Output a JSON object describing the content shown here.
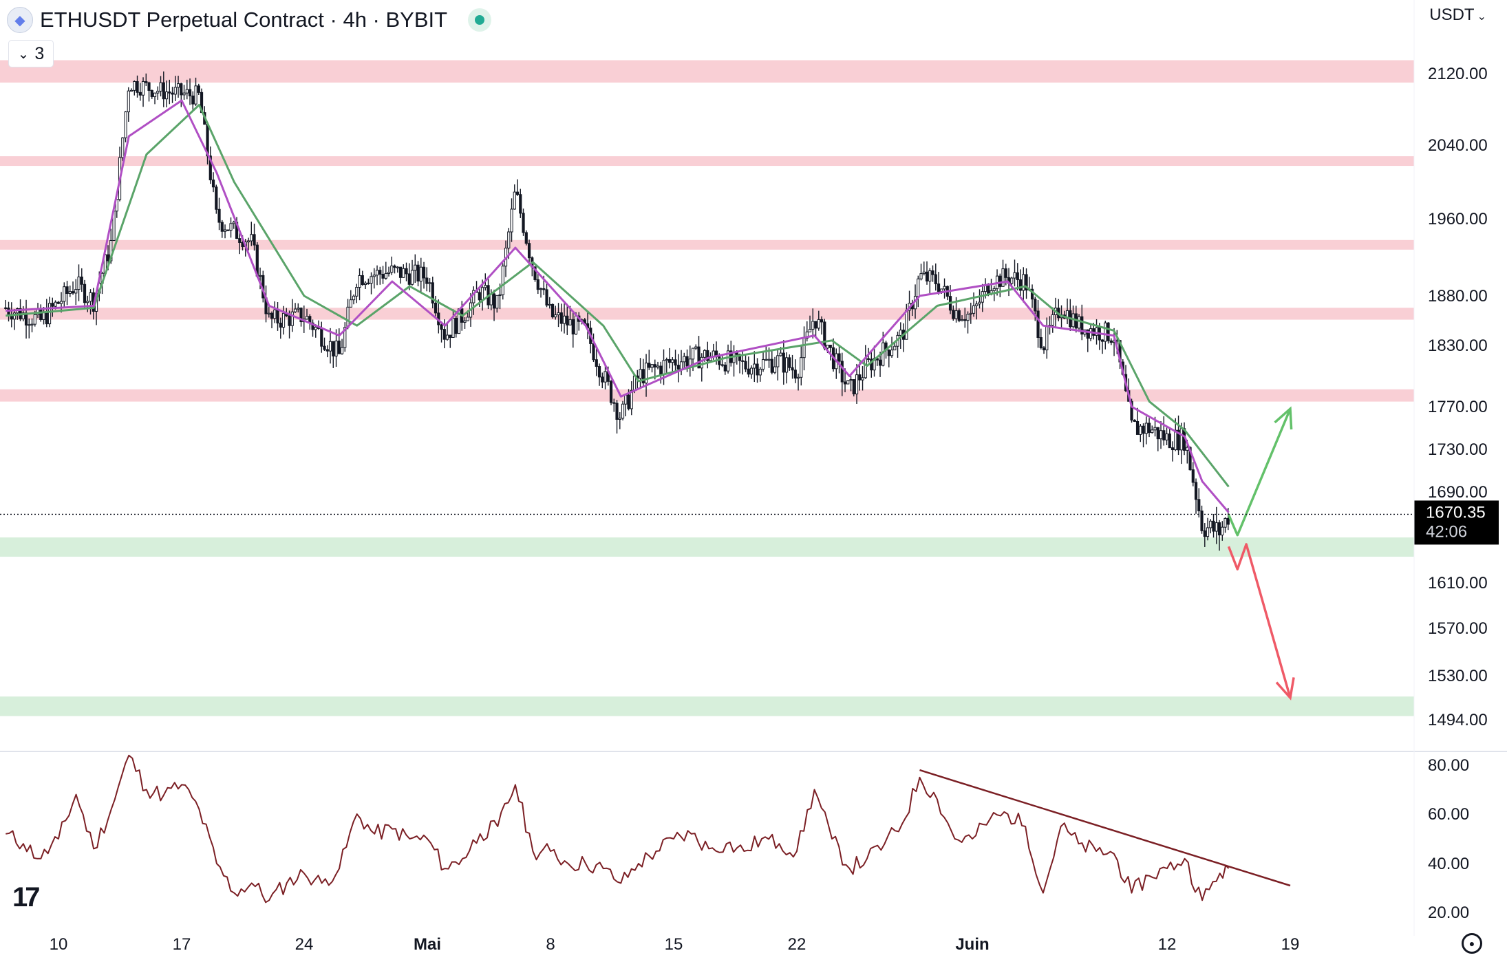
{
  "header": {
    "title": "ETHUSDT Perpetual Contract · 4h · BYBIT",
    "indicator_count": "3",
    "currency": "USDT"
  },
  "icons": {
    "symbol": "ethereum-logo-icon",
    "live": "market-open-dot-icon",
    "collapse": "chevron-down-icon",
    "currency_menu": "chevron-down-icon",
    "brand": "tradingview-logo-icon",
    "settings": "gear-icon"
  },
  "colors": {
    "resistance_zone": "#f9cfd5",
    "support_zone": "#d7efdb",
    "ema_fast": "#b04fc4",
    "ema_slow": "#5aa469",
    "rsi_line": "#7b1f24",
    "bull_arrow": "#63c16a",
    "bear_arrow": "#ef5a67",
    "candle": "#131722"
  },
  "chart_data": [
    {
      "type": "candlestick",
      "title": "ETHUSDT Perpetual Contract · 4h · BYBIT",
      "y_axis": {
        "ticks": [
          2120,
          2040,
          1960,
          1880,
          1830,
          1770,
          1730,
          1690,
          1610,
          1570,
          1530,
          1494
        ],
        "tick_labels": [
          "2120.00",
          "2040.00",
          "1960.00",
          "1880.00",
          "1830.00",
          "1770.00",
          "1730.00",
          "1690.00",
          "1610.00",
          "1570.00",
          "1530.00",
          "1494.00"
        ]
      },
      "x_axis": {
        "tick_labels": [
          "10",
          "17",
          "24",
          "Mai",
          "8",
          "15",
          "22",
          "Juin",
          "12",
          "19"
        ],
        "tick_dates": [
          "2023-04-10",
          "2023-04-17",
          "2023-04-24",
          "2023-05-01",
          "2023-05-08",
          "2023-05-15",
          "2023-05-22",
          "2023-06-01",
          "2023-06-12",
          "2023-06-19"
        ]
      },
      "current_price": {
        "value": 1670.35,
        "label": "1670.35",
        "countdown": "42:06"
      },
      "price_path": [
        {
          "date": "2023-04-07",
          "price": 1868
        },
        {
          "date": "2023-04-09",
          "price": 1855
        },
        {
          "date": "2023-04-11",
          "price": 1892
        },
        {
          "date": "2023-04-12",
          "price": 1875
        },
        {
          "date": "2023-04-13",
          "price": 1935
        },
        {
          "date": "2023-04-14",
          "price": 2110
        },
        {
          "date": "2023-04-16",
          "price": 2100
        },
        {
          "date": "2023-04-18",
          "price": 2095
        },
        {
          "date": "2023-04-19",
          "price": 1960
        },
        {
          "date": "2023-04-21",
          "price": 1935
        },
        {
          "date": "2023-04-22",
          "price": 1855
        },
        {
          "date": "2023-04-24",
          "price": 1860
        },
        {
          "date": "2023-04-26",
          "price": 1820
        },
        {
          "date": "2023-04-27",
          "price": 1900
        },
        {
          "date": "2023-04-29",
          "price": 1905
        },
        {
          "date": "2023-05-01",
          "price": 1900
        },
        {
          "date": "2023-05-02",
          "price": 1840
        },
        {
          "date": "2023-05-03",
          "price": 1860
        },
        {
          "date": "2023-05-04",
          "price": 1885
        },
        {
          "date": "2023-05-05",
          "price": 1870
        },
        {
          "date": "2023-05-06",
          "price": 1990
        },
        {
          "date": "2023-05-07",
          "price": 1910
        },
        {
          "date": "2023-05-08",
          "price": 1860
        },
        {
          "date": "2023-05-10",
          "price": 1845
        },
        {
          "date": "2023-05-11",
          "price": 1800
        },
        {
          "date": "2023-05-12",
          "price": 1760
        },
        {
          "date": "2023-05-13",
          "price": 1800
        },
        {
          "date": "2023-05-15",
          "price": 1815
        },
        {
          "date": "2023-05-17",
          "price": 1820
        },
        {
          "date": "2023-05-19",
          "price": 1810
        },
        {
          "date": "2023-05-21",
          "price": 1815
        },
        {
          "date": "2023-05-22",
          "price": 1805
        },
        {
          "date": "2023-05-23",
          "price": 1860
        },
        {
          "date": "2023-05-24",
          "price": 1820
        },
        {
          "date": "2023-05-25",
          "price": 1785
        },
        {
          "date": "2023-05-26",
          "price": 1810
        },
        {
          "date": "2023-05-27",
          "price": 1825
        },
        {
          "date": "2023-05-28",
          "price": 1840
        },
        {
          "date": "2023-05-29",
          "price": 1900
        },
        {
          "date": "2023-05-30",
          "price": 1895
        },
        {
          "date": "2023-05-31",
          "price": 1865
        },
        {
          "date": "2023-06-01",
          "price": 1860
        },
        {
          "date": "2023-06-02",
          "price": 1895
        },
        {
          "date": "2023-06-03",
          "price": 1900
        },
        {
          "date": "2023-06-04",
          "price": 1895
        },
        {
          "date": "2023-06-05",
          "price": 1830
        },
        {
          "date": "2023-06-06",
          "price": 1870
        },
        {
          "date": "2023-06-07",
          "price": 1850
        },
        {
          "date": "2023-06-08",
          "price": 1845
        },
        {
          "date": "2023-06-09",
          "price": 1840
        },
        {
          "date": "2023-06-10",
          "price": 1750
        },
        {
          "date": "2023-06-11",
          "price": 1750
        },
        {
          "date": "2023-06-12",
          "price": 1740
        },
        {
          "date": "2023-06-13",
          "price": 1740
        },
        {
          "date": "2023-06-14",
          "price": 1660
        },
        {
          "date": "2023-06-15",
          "price": 1655
        },
        {
          "date": "2023-06-15T12:00",
          "price": 1670
        }
      ],
      "ema_fast": [
        {
          "date": "2023-04-07",
          "price": 1865
        },
        {
          "date": "2023-04-12",
          "price": 1870
        },
        {
          "date": "2023-04-14",
          "price": 2050
        },
        {
          "date": "2023-04-17",
          "price": 2090
        },
        {
          "date": "2023-04-19",
          "price": 2010
        },
        {
          "date": "2023-04-22",
          "price": 1870
        },
        {
          "date": "2023-04-26",
          "price": 1840
        },
        {
          "date": "2023-04-29",
          "price": 1895
        },
        {
          "date": "2023-05-02",
          "price": 1850
        },
        {
          "date": "2023-05-06",
          "price": 1930
        },
        {
          "date": "2023-05-10",
          "price": 1850
        },
        {
          "date": "2023-05-12",
          "price": 1780
        },
        {
          "date": "2023-05-17",
          "price": 1818
        },
        {
          "date": "2023-05-23",
          "price": 1840
        },
        {
          "date": "2023-05-25",
          "price": 1800
        },
        {
          "date": "2023-05-29",
          "price": 1880
        },
        {
          "date": "2023-06-03",
          "price": 1895
        },
        {
          "date": "2023-06-05",
          "price": 1850
        },
        {
          "date": "2023-06-09",
          "price": 1840
        },
        {
          "date": "2023-06-10",
          "price": 1770
        },
        {
          "date": "2023-06-13",
          "price": 1742
        },
        {
          "date": "2023-06-14",
          "price": 1700
        },
        {
          "date": "2023-06-15T12:00",
          "price": 1672
        }
      ],
      "ema_slow": [
        {
          "date": "2023-04-07",
          "price": 1860
        },
        {
          "date": "2023-04-12",
          "price": 1868
        },
        {
          "date": "2023-04-15",
          "price": 2030
        },
        {
          "date": "2023-04-18",
          "price": 2085
        },
        {
          "date": "2023-04-20",
          "price": 2000
        },
        {
          "date": "2023-04-24",
          "price": 1880
        },
        {
          "date": "2023-04-27",
          "price": 1850
        },
        {
          "date": "2023-04-30",
          "price": 1890
        },
        {
          "date": "2023-05-03",
          "price": 1860
        },
        {
          "date": "2023-05-07",
          "price": 1915
        },
        {
          "date": "2023-05-11",
          "price": 1850
        },
        {
          "date": "2023-05-13",
          "price": 1795
        },
        {
          "date": "2023-05-18",
          "price": 1818
        },
        {
          "date": "2023-05-24",
          "price": 1835
        },
        {
          "date": "2023-05-26",
          "price": 1810
        },
        {
          "date": "2023-05-30",
          "price": 1870
        },
        {
          "date": "2023-06-04",
          "price": 1890
        },
        {
          "date": "2023-06-06",
          "price": 1860
        },
        {
          "date": "2023-06-09",
          "price": 1845
        },
        {
          "date": "2023-06-11",
          "price": 1775
        },
        {
          "date": "2023-06-13",
          "price": 1748
        },
        {
          "date": "2023-06-15T12:00",
          "price": 1695
        }
      ],
      "resistance_zones": [
        [
          2110,
          2135
        ],
        [
          2018,
          2028
        ],
        [
          1928,
          1938
        ],
        [
          1856,
          1868
        ],
        [
          1775,
          1787
        ]
      ],
      "support_zones": [
        [
          1633,
          1650
        ],
        [
          1497,
          1513
        ]
      ],
      "scenario_arrows": [
        {
          "name": "bullish",
          "points": [
            {
              "date": "2023-06-15T12:00",
              "price": 1670
            },
            {
              "date": "2023-06-16",
              "price": 1652
            },
            {
              "date": "2023-06-19",
              "price": 1768
            }
          ]
        },
        {
          "name": "bearish",
          "points": [
            {
              "date": "2023-06-15T12:00",
              "price": 1642
            },
            {
              "date": "2023-06-16",
              "price": 1622
            },
            {
              "date": "2023-06-16T12:00",
              "price": 1644
            },
            {
              "date": "2023-06-19",
              "price": 1512
            }
          ]
        }
      ]
    },
    {
      "type": "line",
      "y_axis": {
        "ticks": [
          80,
          60,
          40,
          20
        ],
        "tick_labels": [
          "80.00",
          "60.00",
          "40.00",
          "20.00"
        ]
      },
      "series": [
        {
          "values": [
            {
              "date": "2023-04-07",
              "value": 52
            },
            {
              "date": "2023-04-08",
              "value": 48
            },
            {
              "date": "2023-04-09",
              "value": 42
            },
            {
              "date": "2023-04-10",
              "value": 50
            },
            {
              "date": "2023-04-11",
              "value": 68
            },
            {
              "date": "2023-04-12",
              "value": 46
            },
            {
              "date": "2023-04-13",
              "value": 62
            },
            {
              "date": "2023-04-14",
              "value": 84
            },
            {
              "date": "2023-04-15",
              "value": 70
            },
            {
              "date": "2023-04-16",
              "value": 68
            },
            {
              "date": "2023-04-17",
              "value": 72
            },
            {
              "date": "2023-04-18",
              "value": 62
            },
            {
              "date": "2023-04-19",
              "value": 40
            },
            {
              "date": "2023-04-20",
              "value": 28
            },
            {
              "date": "2023-04-21",
              "value": 32
            },
            {
              "date": "2023-04-22",
              "value": 25
            },
            {
              "date": "2023-04-23",
              "value": 32
            },
            {
              "date": "2023-04-24",
              "value": 36
            },
            {
              "date": "2023-04-25",
              "value": 32
            },
            {
              "date": "2023-04-26",
              "value": 38
            },
            {
              "date": "2023-04-27",
              "value": 60
            },
            {
              "date": "2023-04-28",
              "value": 52
            },
            {
              "date": "2023-04-29",
              "value": 54
            },
            {
              "date": "2023-04-30",
              "value": 50
            },
            {
              "date": "2023-05-01",
              "value": 50
            },
            {
              "date": "2023-05-02",
              "value": 38
            },
            {
              "date": "2023-05-03",
              "value": 42
            },
            {
              "date": "2023-05-04",
              "value": 52
            },
            {
              "date": "2023-05-05",
              "value": 55
            },
            {
              "date": "2023-05-06",
              "value": 72
            },
            {
              "date": "2023-05-07",
              "value": 45
            },
            {
              "date": "2023-05-08",
              "value": 45
            },
            {
              "date": "2023-05-09",
              "value": 40
            },
            {
              "date": "2023-05-10",
              "value": 40
            },
            {
              "date": "2023-05-11",
              "value": 38
            },
            {
              "date": "2023-05-12",
              "value": 32
            },
            {
              "date": "2023-05-13",
              "value": 40
            },
            {
              "date": "2023-05-14",
              "value": 45
            },
            {
              "date": "2023-05-15",
              "value": 50
            },
            {
              "date": "2023-05-16",
              "value": 52
            },
            {
              "date": "2023-05-17",
              "value": 46
            },
            {
              "date": "2023-05-18",
              "value": 48
            },
            {
              "date": "2023-05-19",
              "value": 45
            },
            {
              "date": "2023-05-20",
              "value": 50
            },
            {
              "date": "2023-05-21",
              "value": 48
            },
            {
              "date": "2023-05-22",
              "value": 45
            },
            {
              "date": "2023-05-23",
              "value": 70
            },
            {
              "date": "2023-05-24",
              "value": 50
            },
            {
              "date": "2023-05-25",
              "value": 38
            },
            {
              "date": "2023-05-26",
              "value": 42
            },
            {
              "date": "2023-05-27",
              "value": 48
            },
            {
              "date": "2023-05-28",
              "value": 56
            },
            {
              "date": "2023-05-29",
              "value": 75
            },
            {
              "date": "2023-05-30",
              "value": 66
            },
            {
              "date": "2023-05-31",
              "value": 50
            },
            {
              "date": "2023-06-01",
              "value": 50
            },
            {
              "date": "2023-06-02",
              "value": 58
            },
            {
              "date": "2023-06-03",
              "value": 60
            },
            {
              "date": "2023-06-04",
              "value": 55
            },
            {
              "date": "2023-06-05",
              "value": 28
            },
            {
              "date": "2023-06-06",
              "value": 55
            },
            {
              "date": "2023-06-07",
              "value": 48
            },
            {
              "date": "2023-06-08",
              "value": 45
            },
            {
              "date": "2023-06-09",
              "value": 44
            },
            {
              "date": "2023-06-10",
              "value": 28
            },
            {
              "date": "2023-06-11",
              "value": 35
            },
            {
              "date": "2023-06-12",
              "value": 38
            },
            {
              "date": "2023-06-13",
              "value": 42
            },
            {
              "date": "2023-06-14",
              "value": 25
            },
            {
              "date": "2023-06-15",
              "value": 36
            },
            {
              "date": "2023-06-15T12:00",
              "value": 38
            }
          ]
        }
      ],
      "trendline": [
        {
          "date": "2023-05-29",
          "value": 78
        },
        {
          "date": "2023-06-19",
          "value": 31
        }
      ]
    }
  ]
}
